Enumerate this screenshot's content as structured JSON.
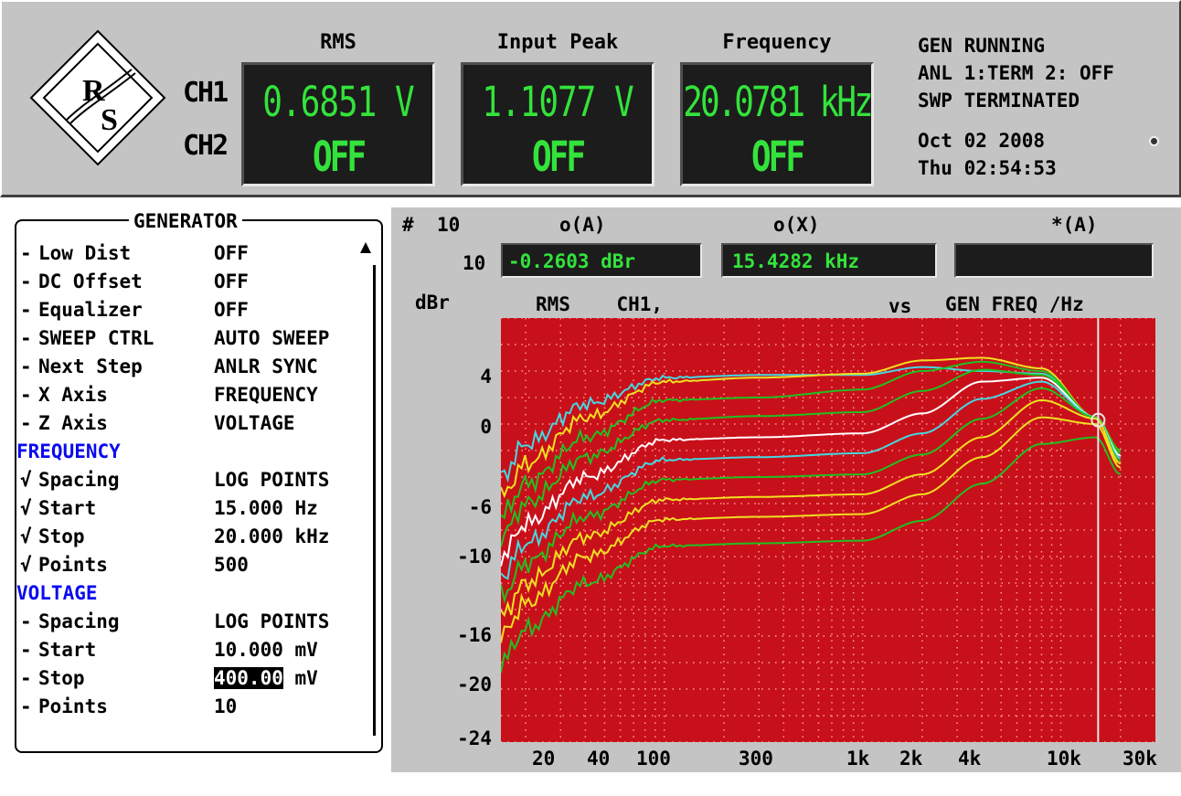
{
  "header": {
    "col_rms": "RMS",
    "col_peak": "Input Peak",
    "col_freq": "Frequency",
    "ch1": "CH1",
    "ch2": "CH2",
    "rms_ch1": "0.6851  V",
    "rms_ch2": "OFF",
    "peak_ch1": "1.1077  V",
    "peak_ch2": "OFF",
    "freq_ch1": "20.0781 kHz",
    "freq_ch2": "OFF",
    "status_gen": "GEN RUNNING",
    "status_anl": "ANL 1:TERM 2: OFF",
    "status_swp": "SWP TERMINATED",
    "date": "Oct 02 2008",
    "time": "Thu 02:54:53"
  },
  "generator": {
    "title": "GENERATOR",
    "rows": [
      {
        "pre": "-",
        "label": "Low Dist",
        "value": "OFF"
      },
      {
        "pre": "-",
        "label": "DC Offset",
        "value": "OFF"
      },
      {
        "pre": "-",
        "label": "Equalizer",
        "value": "OFF"
      },
      {
        "pre": "-",
        "label": "SWEEP CTRL",
        "value": "AUTO SWEEP"
      },
      {
        "pre": "-",
        "label": "Next Step",
        "value": "ANLR SYNC"
      },
      {
        "pre": "-",
        "label": "X Axis",
        "value": "FREQUENCY"
      },
      {
        "pre": "-",
        "label": "Z Axis",
        "value": "VOLTAGE"
      }
    ],
    "freq_section": "FREQUENCY",
    "freq_rows": [
      {
        "pre": "√",
        "label": "Spacing",
        "value": "LOG POINTS"
      },
      {
        "pre": "√",
        "label": "Start",
        "value": "15.000 Hz"
      },
      {
        "pre": "√",
        "label": "Stop",
        "value": "20.000 kHz"
      },
      {
        "pre": "√",
        "label": "Points",
        "value": "500"
      }
    ],
    "volt_section": "VOLTAGE",
    "volt_rows": [
      {
        "pre": "-",
        "label": "Spacing",
        "value": "LOG POINTS"
      },
      {
        "pre": "-",
        "label": "Start",
        "value": "10.000 mV"
      },
      {
        "pre": "-",
        "label": "Stop",
        "value_hl": "400.00",
        "value_unit": "mV"
      },
      {
        "pre": "-",
        "label": "Points",
        "value": "10"
      }
    ]
  },
  "graph": {
    "hash": "#",
    "count_top": "10",
    "count_row": "10",
    "cursor_a_label": "o(A)",
    "cursor_x_label": "o(X)",
    "cursor_star_label": "*(A)",
    "cursor_a_value": "-0.2603 dBr",
    "cursor_x_value": "15.4282 kHz",
    "cursor_star_value": "",
    "y_unit": "dBr",
    "trace_desc": "RMS    CH1,",
    "vs": "vs",
    "x_desc": "GEN FREQ /Hz",
    "y_ticks": [
      "4",
      "0",
      "-6",
      "-10",
      "-16",
      "-20",
      "-24"
    ],
    "x_ticks": [
      "20",
      "40",
      "100",
      "300",
      "1k",
      "2k",
      "4k",
      "10k",
      "30k"
    ]
  },
  "chart_data": {
    "type": "line",
    "x_scale": "log",
    "xlim": [
      15,
      30000
    ],
    "ylim": [
      -24,
      8
    ],
    "ylabel": "dBr",
    "xlabel": "GEN FREQ /Hz",
    "grid": true,
    "cursor_x": 15428.2,
    "series": [
      {
        "color": "#44d8e0",
        "x": [
          15,
          20,
          40,
          100,
          300,
          1000,
          2000,
          4000,
          8000,
          15000,
          20000
        ],
        "y": [
          -4.0,
          -1.5,
          1.5,
          3.5,
          3.7,
          3.7,
          4.3,
          4.0,
          3.8,
          0.5,
          -2.0
        ]
      },
      {
        "color": "#f0e020",
        "x": [
          15,
          20,
          40,
          100,
          300,
          1000,
          2000,
          4000,
          8000,
          15000,
          20000
        ],
        "y": [
          -5.5,
          -3.0,
          0.5,
          3.2,
          3.5,
          3.8,
          4.8,
          5.0,
          4.2,
          0.5,
          -2.0
        ]
      },
      {
        "color": "#20c020",
        "x": [
          15,
          20,
          40,
          100,
          300,
          1000,
          2000,
          4000,
          8000,
          15000,
          20000
        ],
        "y": [
          -7.0,
          -4.5,
          -1.0,
          1.8,
          2.0,
          2.6,
          4.0,
          4.7,
          4.0,
          0.5,
          -2.0
        ]
      },
      {
        "color": "#20c020",
        "x": [
          15,
          20,
          40,
          100,
          300,
          1000,
          2000,
          4000,
          8000,
          15000,
          20000
        ],
        "y": [
          -8.5,
          -6.0,
          -2.5,
          0.3,
          0.6,
          0.9,
          2.5,
          4.1,
          3.7,
          0.5,
          -2.2
        ]
      },
      {
        "color": "#ffffff",
        "x": [
          15,
          20,
          40,
          100,
          300,
          1000,
          2000,
          4000,
          8000,
          15000,
          20000
        ],
        "y": [
          -10.0,
          -7.5,
          -4.0,
          -1.2,
          -1.0,
          -0.7,
          0.8,
          3.2,
          3.5,
          0.5,
          -2.4
        ]
      },
      {
        "color": "#44d8e0",
        "x": [
          15,
          20,
          40,
          100,
          300,
          1000,
          2000,
          4000,
          8000,
          15000,
          20000
        ],
        "y": [
          -11.5,
          -9.0,
          -5.5,
          -2.7,
          -2.5,
          -2.2,
          -0.7,
          1.9,
          3.2,
          0.5,
          -2.6
        ]
      },
      {
        "color": "#20c020",
        "x": [
          15,
          20,
          40,
          100,
          300,
          1000,
          2000,
          4000,
          8000,
          15000,
          20000
        ],
        "y": [
          -13.0,
          -10.5,
          -7.0,
          -4.2,
          -4.0,
          -3.8,
          -2.3,
          0.4,
          2.7,
          0.5,
          -2.8
        ]
      },
      {
        "color": "#f0e020",
        "x": [
          15,
          20,
          40,
          100,
          300,
          1000,
          2000,
          4000,
          8000,
          15000,
          20000
        ],
        "y": [
          -14.5,
          -12.0,
          -8.5,
          -5.7,
          -5.5,
          -5.3,
          -3.8,
          -1.0,
          1.8,
          0.4,
          -3.0
        ]
      },
      {
        "color": "#f0e020",
        "x": [
          15,
          20,
          40,
          100,
          300,
          1000,
          2000,
          4000,
          8000,
          15000,
          20000
        ],
        "y": [
          -16.0,
          -13.5,
          -10.0,
          -7.2,
          -7.0,
          -6.8,
          -5.3,
          -2.5,
          0.5,
          0.0,
          -3.3
        ]
      },
      {
        "color": "#20c020",
        "x": [
          15,
          20,
          40,
          100,
          300,
          1000,
          2000,
          4000,
          8000,
          15000,
          20000
        ],
        "y": [
          -18.0,
          -15.5,
          -12.0,
          -9.2,
          -9.0,
          -8.8,
          -7.3,
          -4.5,
          -1.5,
          -1.0,
          -3.8
        ]
      }
    ]
  }
}
